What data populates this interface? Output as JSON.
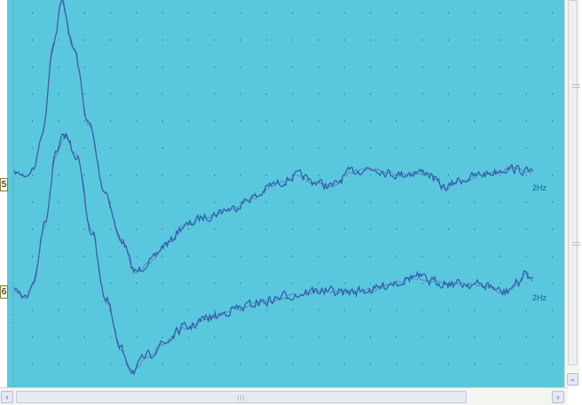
{
  "channels": [
    {
      "label": "5",
      "freq_label": "2Hz"
    },
    {
      "label": "6",
      "freq_label": "2Hz"
    }
  ],
  "colors": {
    "background": "#5ac8dc",
    "trace": "#1f5fb0",
    "trace_overlay": "#7a4aa0",
    "grid_dot": "#2d6c88"
  },
  "icons": {
    "scroll_up": "scroll-up-arrow-icon",
    "scroll_down": "scroll-down-arrow-icon",
    "scroll_left": "scroll-left-arrow-icon",
    "scroll_right": "scroll-right-arrow-icon"
  },
  "scrollbar": {
    "left_arrow": "‹",
    "right_arrow": "›",
    "down_arrow": "⌄"
  }
}
